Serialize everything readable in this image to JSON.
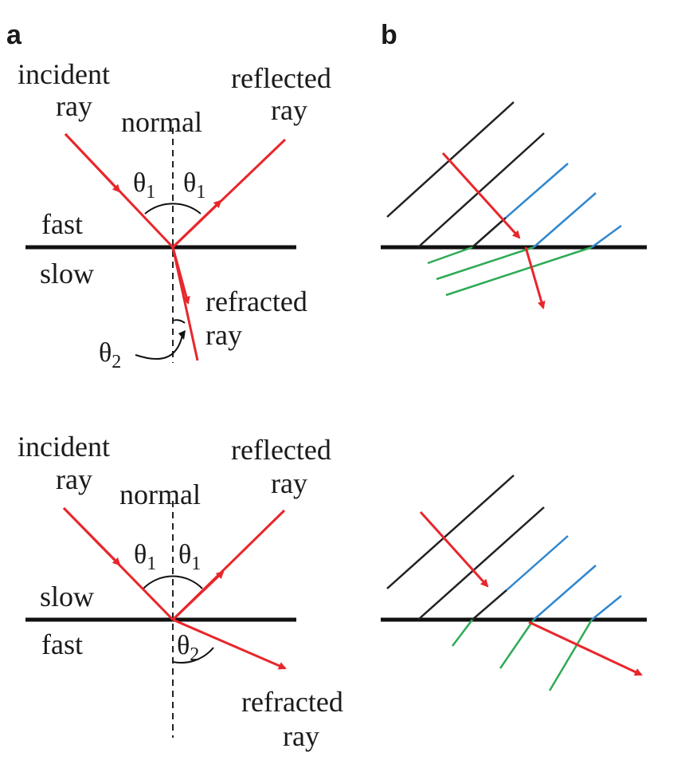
{
  "colors": {
    "ray": "#e8262b",
    "wavefront_incident": "#222222",
    "wavefront_reflected": "#2f86cf",
    "wavefront_refracted": "#2eaa55",
    "interface": "#111111"
  },
  "panel_a": {
    "label": "a",
    "top": {
      "incident": [
        "incident",
        "ray"
      ],
      "reflected": [
        "reflected",
        "ray"
      ],
      "normal": "normal",
      "upper_medium": "fast",
      "lower_medium": "slow",
      "refracted": [
        "refracted",
        "ray"
      ],
      "theta1": {
        "base": "θ",
        "sub": "1"
      },
      "theta2": {
        "base": "θ",
        "sub": "2"
      }
    },
    "bottom": {
      "incident": [
        "incident",
        "ray"
      ],
      "reflected": [
        "reflected",
        "ray"
      ],
      "normal": "normal",
      "upper_medium": "slow",
      "lower_medium": "fast",
      "refracted": [
        "refracted",
        "ray"
      ],
      "theta1": {
        "base": "θ",
        "sub": "1"
      },
      "theta2": {
        "base": "θ",
        "sub": "2"
      }
    }
  },
  "panel_b": {
    "label": "b"
  },
  "icons": {
    "arrowhead": "arrowhead-icon"
  }
}
